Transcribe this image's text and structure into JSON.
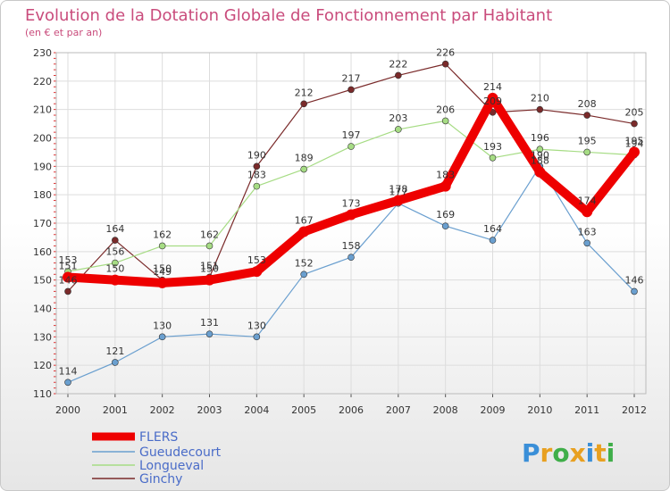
{
  "title": "Evolution de la Dotation Globale de Fonctionnement par Habitant",
  "subtitle": "(en € et par an)",
  "brand": {
    "letters": [
      "P",
      "r",
      "o",
      "x",
      "i",
      "t",
      "i"
    ],
    "colors": [
      "#3a8fd8",
      "#e8a020",
      "#3fae49",
      "#e8a020",
      "#3a8fd8",
      "#e8a020",
      "#3fae49"
    ]
  },
  "chart_data": {
    "type": "line",
    "title": "Evolution de la Dotation Globale de Fonctionnement par Habitant",
    "subtitle": "(en € et par an)",
    "xlabel": "",
    "ylabel": "",
    "categories": [
      "2000",
      "2001",
      "2002",
      "2003",
      "2004",
      "2005",
      "2006",
      "2007",
      "2008",
      "2009",
      "2010",
      "2011",
      "2012"
    ],
    "ylim": [
      110,
      230
    ],
    "yticks": [
      110,
      120,
      130,
      140,
      150,
      160,
      170,
      180,
      190,
      200,
      210,
      220,
      230
    ],
    "legend_position": "bottom-left",
    "series": [
      {
        "name": "FLERS",
        "color": "#ee0000",
        "values": [
          151,
          150,
          149,
          150,
          153,
          167,
          173,
          178,
          183,
          214,
          188,
          174,
          195
        ]
      },
      {
        "name": "Gueudecourt",
        "color": "#6a9fcf",
        "values": [
          114,
          121,
          130,
          131,
          130,
          152,
          158,
          177,
          169,
          164,
          190,
          163,
          146
        ]
      },
      {
        "name": "Longueval",
        "color": "#a6dc84",
        "values": [
          153,
          156,
          162,
          162,
          183,
          189,
          197,
          203,
          206,
          193,
          196,
          195,
          194
        ]
      },
      {
        "name": "Ginchy",
        "color": "#7a2a2a",
        "values": [
          146,
          164,
          150,
          151,
          190,
          212,
          217,
          222,
          226,
          209,
          210,
          208,
          205
        ]
      }
    ]
  }
}
